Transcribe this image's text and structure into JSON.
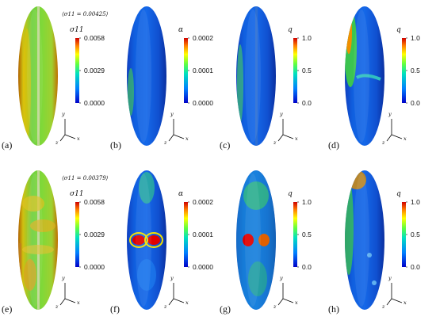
{
  "panels": [
    {
      "label": "(a)",
      "cbar_title": "σ11",
      "ticks": [
        "0.0058",
        "0.0029",
        "0.0000"
      ],
      "note": "⟨σ11 = 0.00425⟩",
      "variant": "stress-top"
    },
    {
      "label": "(b)",
      "cbar_title": "α",
      "ticks": [
        "0.0002",
        "0.0001",
        "0.0000"
      ],
      "note": "",
      "variant": "alpha-top"
    },
    {
      "label": "(c)",
      "cbar_title": "q",
      "ticks": [
        "1.0",
        "0.5",
        "0.0"
      ],
      "note": "",
      "variant": "q-top"
    },
    {
      "label": "(d)",
      "cbar_title": "q",
      "ticks": [
        "1.0",
        "0.5",
        "0.0"
      ],
      "note": "",
      "variant": "qd-top"
    },
    {
      "label": "(e)",
      "cbar_title": "σ11",
      "ticks": [
        "0.0058",
        "0.0029",
        "0.0000"
      ],
      "note": "⟨σ11 = 0.00379⟩",
      "variant": "stress-bot"
    },
    {
      "label": "(f)",
      "cbar_title": "α",
      "ticks": [
        "0.0002",
        "0.0001",
        "0.0000"
      ],
      "note": "",
      "variant": "alpha-bot"
    },
    {
      "label": "(g)",
      "cbar_title": "q",
      "ticks": [
        "1.0",
        "0.5",
        "0.0"
      ],
      "note": "",
      "variant": "q-bot"
    },
    {
      "label": "(h)",
      "cbar_title": "q",
      "ticks": [
        "1.0",
        "0.5",
        "0.0"
      ],
      "note": "",
      "variant": "qd-bot"
    }
  ],
  "axes": {
    "x": "x",
    "y": "y",
    "z": "z"
  }
}
